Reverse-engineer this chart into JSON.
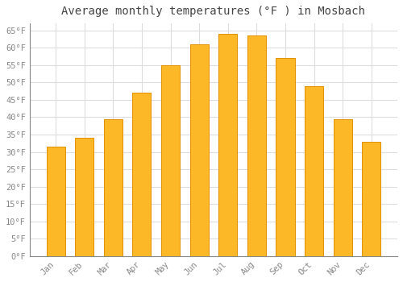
{
  "title": "Average monthly temperatures (°F ) in Mosbach",
  "months": [
    "Jan",
    "Feb",
    "Mar",
    "Apr",
    "May",
    "Jun",
    "Jul",
    "Aug",
    "Sep",
    "Oct",
    "Nov",
    "Dec"
  ],
  "values": [
    31.5,
    34.0,
    39.5,
    47.0,
    55.0,
    61.0,
    64.0,
    63.5,
    57.0,
    49.0,
    39.5,
    33.0
  ],
  "bar_color": "#FDB827",
  "bar_edge_color": "#E09000",
  "ylim": [
    0,
    67
  ],
  "yticks": [
    0,
    5,
    10,
    15,
    20,
    25,
    30,
    35,
    40,
    45,
    50,
    55,
    60,
    65
  ],
  "background_color": "#ffffff",
  "grid_color": "#dddddd",
  "title_fontsize": 10,
  "tick_fontsize": 7.5,
  "font_family": "monospace",
  "tick_color": "#888888",
  "title_color": "#444444"
}
